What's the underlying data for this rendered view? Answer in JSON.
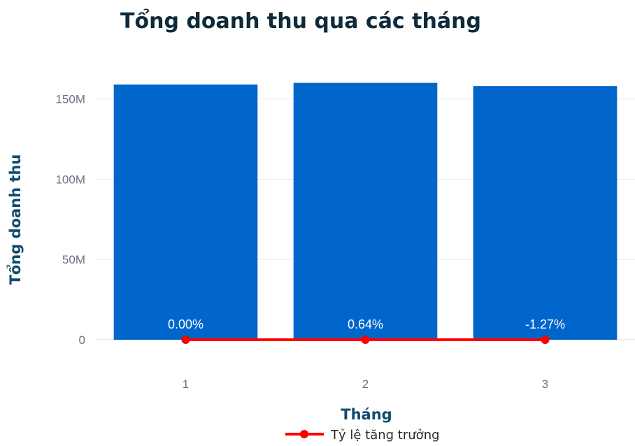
{
  "chart_data": {
    "type": "bar",
    "title": "Tổng doanh thu qua các tháng",
    "xlabel": "Tháng",
    "ylabel": "Tổng doanh thu",
    "categories": [
      "1",
      "2",
      "3"
    ],
    "ylim": [
      0,
      172000000
    ],
    "yticks": [
      {
        "value": 0,
        "label": "0"
      },
      {
        "value": 50000000,
        "label": "50M"
      },
      {
        "value": 100000000,
        "label": "100M"
      },
      {
        "value": 150000000,
        "label": "150M"
      }
    ],
    "grid": true,
    "series": [
      {
        "type": "bar",
        "values": [
          159000000,
          160000000,
          158000000
        ],
        "color": "#0066cc"
      },
      {
        "type": "line",
        "name": "Tỷ lệ tăng trưởng",
        "values": [
          0.0,
          0.64,
          -1.27
        ],
        "labels": [
          "0.00%",
          "0.64%",
          "-1.27%"
        ],
        "color": "#ff0000"
      }
    ],
    "legend": {
      "position": "bottom",
      "entries": [
        "Tỷ lệ tăng trưởng"
      ]
    }
  }
}
